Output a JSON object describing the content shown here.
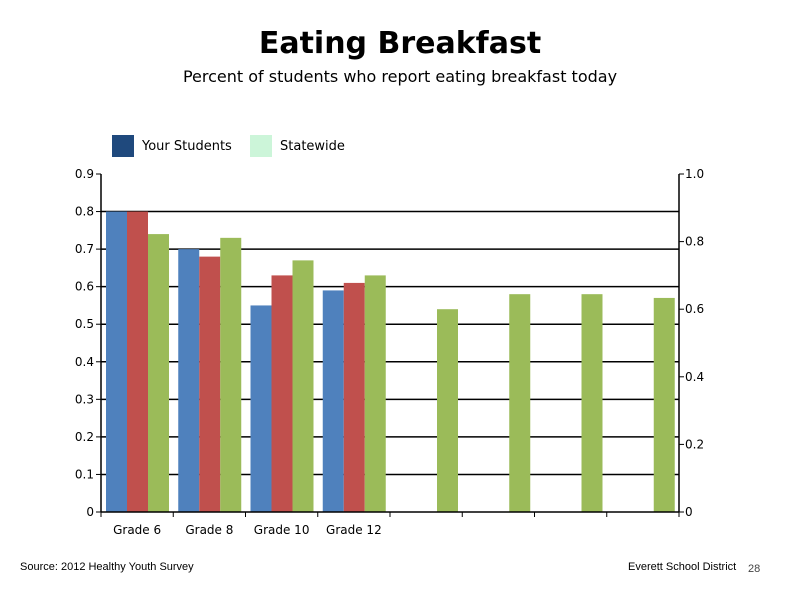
{
  "chart_data": {
    "type": "bar",
    "title": "Eating Breakfast",
    "subtitle": "Percent of students who report eating breakfast today",
    "categories": [
      "Grade 6",
      "Grade 8",
      "Grade 10",
      "Grade 12",
      "",
      "",
      "",
      ""
    ],
    "series": [
      {
        "name": "",
        "color": "#4f81bd",
        "values": [
          0.8,
          0.7,
          0.55,
          0.59,
          null,
          null,
          null,
          null
        ]
      },
      {
        "name": "",
        "color": "#c0504d",
        "values": [
          0.8,
          0.68,
          0.63,
          0.61,
          null,
          null,
          null,
          null
        ]
      },
      {
        "name": "",
        "color": "#9bbb59",
        "values": [
          0.74,
          0.73,
          0.67,
          0.63,
          0.54,
          0.58,
          0.58,
          0.57
        ]
      }
    ],
    "left_axis": {
      "min": 0,
      "max": 0.9,
      "ticks": [
        "0",
        "0.1",
        "0.2",
        "0.3",
        "0.4",
        "0.5",
        "0.6",
        "0.7",
        "0.8",
        "0.9"
      ]
    },
    "right_axis": {
      "min": 0,
      "max": 1.0,
      "ticks": [
        "0",
        "0.2",
        "0.4",
        "0.6",
        "0.8",
        "1.0"
      ]
    },
    "grid": true,
    "legend": [
      {
        "label": "Your Students",
        "color": "#1f497d"
      },
      {
        "label": "Statewide",
        "color": "#ccf5d9"
      }
    ],
    "legend_position": "top-left"
  },
  "footer": {
    "source": "Source: 2012 Healthy Youth Survey",
    "org": "Everett School District",
    "page": "28"
  }
}
